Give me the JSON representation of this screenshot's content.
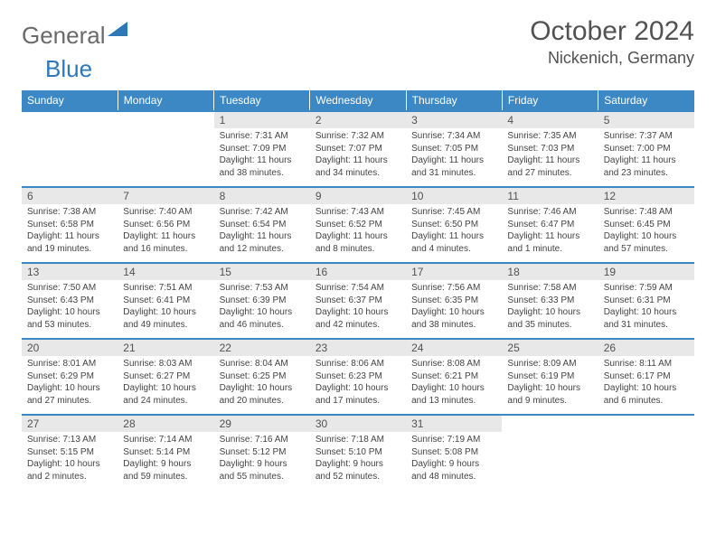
{
  "logo": {
    "text1": "General",
    "text2": "Blue"
  },
  "title": "October 2024",
  "location": "Nickenich, Germany",
  "colors": {
    "header_bg": "#3b88c4",
    "header_text": "#ffffff",
    "daynum_bg": "#e8e8e8",
    "rule": "#3b88c4",
    "body_text": "#444444",
    "title_text": "#525252"
  },
  "fonts": {
    "title_size": 30,
    "location_size": 18,
    "dayhead_size": 12,
    "body_size": 10
  },
  "day_headers": [
    "Sunday",
    "Monday",
    "Tuesday",
    "Wednesday",
    "Thursday",
    "Friday",
    "Saturday"
  ],
  "weeks": [
    [
      null,
      null,
      {
        "num": "1",
        "sunrise": "7:31 AM",
        "sunset": "7:09 PM",
        "daylight": "11 hours and 38 minutes."
      },
      {
        "num": "2",
        "sunrise": "7:32 AM",
        "sunset": "7:07 PM",
        "daylight": "11 hours and 34 minutes."
      },
      {
        "num": "3",
        "sunrise": "7:34 AM",
        "sunset": "7:05 PM",
        "daylight": "11 hours and 31 minutes."
      },
      {
        "num": "4",
        "sunrise": "7:35 AM",
        "sunset": "7:03 PM",
        "daylight": "11 hours and 27 minutes."
      },
      {
        "num": "5",
        "sunrise": "7:37 AM",
        "sunset": "7:00 PM",
        "daylight": "11 hours and 23 minutes."
      }
    ],
    [
      {
        "num": "6",
        "sunrise": "7:38 AM",
        "sunset": "6:58 PM",
        "daylight": "11 hours and 19 minutes."
      },
      {
        "num": "7",
        "sunrise": "7:40 AM",
        "sunset": "6:56 PM",
        "daylight": "11 hours and 16 minutes."
      },
      {
        "num": "8",
        "sunrise": "7:42 AM",
        "sunset": "6:54 PM",
        "daylight": "11 hours and 12 minutes."
      },
      {
        "num": "9",
        "sunrise": "7:43 AM",
        "sunset": "6:52 PM",
        "daylight": "11 hours and 8 minutes."
      },
      {
        "num": "10",
        "sunrise": "7:45 AM",
        "sunset": "6:50 PM",
        "daylight": "11 hours and 4 minutes."
      },
      {
        "num": "11",
        "sunrise": "7:46 AM",
        "sunset": "6:47 PM",
        "daylight": "11 hours and 1 minute."
      },
      {
        "num": "12",
        "sunrise": "7:48 AM",
        "sunset": "6:45 PM",
        "daylight": "10 hours and 57 minutes."
      }
    ],
    [
      {
        "num": "13",
        "sunrise": "7:50 AM",
        "sunset": "6:43 PM",
        "daylight": "10 hours and 53 minutes."
      },
      {
        "num": "14",
        "sunrise": "7:51 AM",
        "sunset": "6:41 PM",
        "daylight": "10 hours and 49 minutes."
      },
      {
        "num": "15",
        "sunrise": "7:53 AM",
        "sunset": "6:39 PM",
        "daylight": "10 hours and 46 minutes."
      },
      {
        "num": "16",
        "sunrise": "7:54 AM",
        "sunset": "6:37 PM",
        "daylight": "10 hours and 42 minutes."
      },
      {
        "num": "17",
        "sunrise": "7:56 AM",
        "sunset": "6:35 PM",
        "daylight": "10 hours and 38 minutes."
      },
      {
        "num": "18",
        "sunrise": "7:58 AM",
        "sunset": "6:33 PM",
        "daylight": "10 hours and 35 minutes."
      },
      {
        "num": "19",
        "sunrise": "7:59 AM",
        "sunset": "6:31 PM",
        "daylight": "10 hours and 31 minutes."
      }
    ],
    [
      {
        "num": "20",
        "sunrise": "8:01 AM",
        "sunset": "6:29 PM",
        "daylight": "10 hours and 27 minutes."
      },
      {
        "num": "21",
        "sunrise": "8:03 AM",
        "sunset": "6:27 PM",
        "daylight": "10 hours and 24 minutes."
      },
      {
        "num": "22",
        "sunrise": "8:04 AM",
        "sunset": "6:25 PM",
        "daylight": "10 hours and 20 minutes."
      },
      {
        "num": "23",
        "sunrise": "8:06 AM",
        "sunset": "6:23 PM",
        "daylight": "10 hours and 17 minutes."
      },
      {
        "num": "24",
        "sunrise": "8:08 AM",
        "sunset": "6:21 PM",
        "daylight": "10 hours and 13 minutes."
      },
      {
        "num": "25",
        "sunrise": "8:09 AM",
        "sunset": "6:19 PM",
        "daylight": "10 hours and 9 minutes."
      },
      {
        "num": "26",
        "sunrise": "8:11 AM",
        "sunset": "6:17 PM",
        "daylight": "10 hours and 6 minutes."
      }
    ],
    [
      {
        "num": "27",
        "sunrise": "7:13 AM",
        "sunset": "5:15 PM",
        "daylight": "10 hours and 2 minutes."
      },
      {
        "num": "28",
        "sunrise": "7:14 AM",
        "sunset": "5:14 PM",
        "daylight": "9 hours and 59 minutes."
      },
      {
        "num": "29",
        "sunrise": "7:16 AM",
        "sunset": "5:12 PM",
        "daylight": "9 hours and 55 minutes."
      },
      {
        "num": "30",
        "sunrise": "7:18 AM",
        "sunset": "5:10 PM",
        "daylight": "9 hours and 52 minutes."
      },
      {
        "num": "31",
        "sunrise": "7:19 AM",
        "sunset": "5:08 PM",
        "daylight": "9 hours and 48 minutes."
      },
      null,
      null
    ]
  ],
  "labels": {
    "sunrise": "Sunrise:",
    "sunset": "Sunset:",
    "daylight": "Daylight:"
  }
}
